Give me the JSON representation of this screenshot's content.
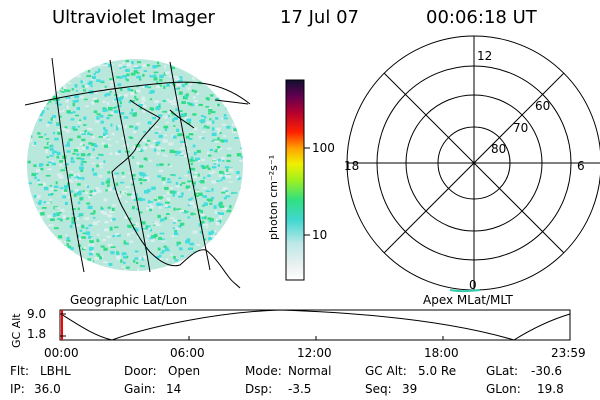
{
  "header": {
    "title": "Ultraviolet Imager",
    "date": "17 Jul 07",
    "time": "00:06:18 UT"
  },
  "colorbar": {
    "unit_label": "photon cm⁻²s⁻¹",
    "ticks": [
      "100",
      "10"
    ]
  },
  "polar_plot": {
    "mlt_labels": {
      "top": "12",
      "left": "18",
      "right": "6",
      "bottom": "0"
    },
    "lat_labels": [
      "60",
      "70",
      "80"
    ]
  },
  "projection_labels": {
    "left": "Geographic Lat/Lon",
    "right": "Apex MLat/MLT"
  },
  "altitude_panel": {
    "axis_title": "GC Alt",
    "y_ticks": [
      "9.0",
      "1.8"
    ],
    "x_ticks": [
      "00:00",
      "06:00",
      "12:00",
      "18:00",
      "23:59"
    ]
  },
  "info": {
    "flt_label": "Flt:",
    "flt_value": "LBHL",
    "ip_label": "IP:",
    "ip_value": "36.0",
    "door_label": "Door:",
    "door_value": "Open",
    "gain_label": "Gain:",
    "gain_value": "14",
    "mode_label": "Mode:",
    "mode_value": "Normal",
    "dsp_label": "Dsp:",
    "dsp_value": "-3.5",
    "gcalt_label": "GC Alt:",
    "gcalt_value": "5.0 Re",
    "seq_label": "Seq:",
    "seq_value": "39",
    "glat_label": "GLat:",
    "glat_value": "-30.6",
    "glon_label": "GLon:",
    "glon_value": "19.8"
  },
  "colors": {
    "image_base": "#b8e8dc",
    "speckle_green": "#33dd88",
    "speckle_cyan": "#44dddd",
    "speckle_light": "#ddeeee",
    "cursor_red": "#ff0000"
  }
}
